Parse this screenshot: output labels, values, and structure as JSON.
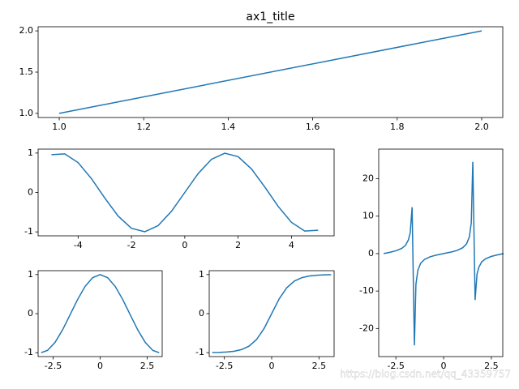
{
  "chart_data": [
    {
      "type": "line",
      "title": "ax1_title",
      "x": [
        1,
        2
      ],
      "values": [
        1,
        2
      ],
      "color": "#1f77b4",
      "xlim": [
        0.95,
        2.05
      ],
      "ylim": [
        0.95,
        2.05
      ],
      "xticks": [
        {
          "value": 1,
          "label": "1.0"
        },
        1.2,
        1.4,
        1.6,
        1.8,
        {
          "value": 2,
          "label": "2.0"
        }
      ],
      "yticks": [
        {
          "value": 1,
          "label": "1.0"
        },
        1.5,
        {
          "value": 2,
          "label": "2.0"
        }
      ]
    },
    {
      "type": "line",
      "x": [
        -5,
        -4.5,
        -4,
        -3.5,
        -3,
        -2.5,
        -2,
        -1.5,
        -1,
        -0.5,
        0,
        0.5,
        1,
        1.5,
        2,
        2.5,
        3,
        3.5,
        4,
        4.5,
        5
      ],
      "values": [
        0.959,
        0.978,
        0.757,
        0.351,
        -0.141,
        -0.598,
        -0.909,
        -0.997,
        -0.841,
        -0.479,
        0,
        0.479,
        0.841,
        0.997,
        0.909,
        0.598,
        0.141,
        -0.351,
        -0.757,
        -0.978,
        -0.959
      ],
      "color": "#1f77b4",
      "xlim": [
        -5.5,
        5.6
      ],
      "ylim": [
        -1.1,
        1.1
      ],
      "xticks": [
        -4,
        -2,
        0,
        2,
        4
      ],
      "yticks": [
        -1,
        0,
        1
      ]
    },
    {
      "type": "line",
      "x": [
        -3.14,
        -2.8,
        -2.5,
        -2.2,
        -2,
        -1.85,
        -1.75,
        -1.65,
        -1.53,
        -1.45,
        -1.35,
        -1.2,
        -1,
        -0.7,
        -0.4,
        0,
        0.4,
        0.7,
        1,
        1.2,
        1.35,
        1.45,
        1.53,
        1.65,
        1.75,
        1.85,
        2,
        2.2,
        2.5,
        2.8,
        3.14
      ],
      "values": [
        0,
        0.36,
        0.75,
        1.37,
        2.19,
        3.6,
        5.5,
        12.4,
        -24.5,
        -8.2,
        -4.46,
        -2.57,
        -1.56,
        -0.84,
        -0.42,
        0,
        0.42,
        0.84,
        1.56,
        2.57,
        4.46,
        8.2,
        24.5,
        -12.4,
        -5.5,
        -3.6,
        -2.19,
        -1.37,
        -0.75,
        -0.36,
        0
      ],
      "color": "#1f77b4",
      "xlim": [
        -3.4,
        3.1
      ],
      "ylim": [
        -27.5,
        27.9
      ],
      "xticks": [
        -2.5,
        0,
        2.5
      ],
      "yticks": [
        -20,
        -10,
        0,
        10,
        20
      ]
    },
    {
      "type": "line",
      "x": [
        -3.14,
        -2.8,
        -2.4,
        -2,
        -1.6,
        -1.2,
        -0.8,
        -0.4,
        0,
        0.4,
        0.8,
        1.2,
        1.6,
        2,
        2.4,
        2.8,
        3.14
      ],
      "values": [
        -1,
        -0.942,
        -0.737,
        -0.416,
        -0.029,
        0.362,
        0.697,
        0.921,
        1,
        0.921,
        0.697,
        0.362,
        -0.029,
        -0.416,
        -0.737,
        -0.942,
        -1
      ],
      "color": "#1f77b4",
      "xlim": [
        -3.3,
        3.3
      ],
      "ylim": [
        -1.1,
        1.1
      ],
      "xticks": [
        -2.5,
        0,
        2.5
      ],
      "yticks": [
        -1,
        0,
        1
      ]
    },
    {
      "type": "line",
      "x": [
        -3.14,
        -2.8,
        -2.4,
        -2,
        -1.6,
        -1.2,
        -0.8,
        -0.4,
        0,
        0.4,
        0.8,
        1.2,
        1.6,
        2,
        2.4,
        2.8,
        3.14
      ],
      "values": [
        -0.996,
        -0.993,
        -0.984,
        -0.964,
        -0.922,
        -0.834,
        -0.664,
        -0.38,
        0,
        0.38,
        0.664,
        0.834,
        0.922,
        0.964,
        0.984,
        0.993,
        0.996
      ],
      "color": "#1f77b4",
      "xlim": [
        -3.3,
        3.3
      ],
      "ylim": [
        -1.1,
        1.1
      ],
      "xticks": [
        -2.5,
        0,
        2.5
      ],
      "yticks": [
        -1,
        0,
        1
      ]
    }
  ],
  "watermark": "https://blog.csdn.net/qq_43359757"
}
